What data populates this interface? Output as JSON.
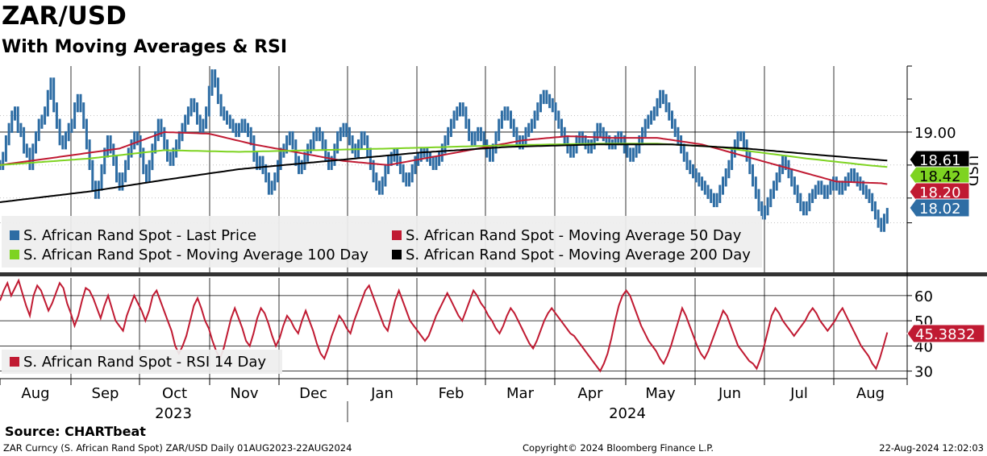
{
  "header": {
    "title": "ZAR/USD",
    "subtitle": "With Moving Averages & RSI"
  },
  "source": "Source: CHARTbeat",
  "footer": {
    "left": "ZAR Curncy (S. African Rand Spot) ZAR/USD  Daily 01AUG2023-22AUG2024",
    "middle": "Copyright© 2024 Bloomberg Finance L.P.",
    "right": "22-Aug-2024 12:02:03"
  },
  "colors": {
    "price": "#2e6da4",
    "ma50": "#c01a32",
    "ma100": "#7ed321",
    "ma200": "#000000",
    "rsi": "#c01a32"
  },
  "chart_data": [
    {
      "type": "line",
      "title": "ZAR/USD",
      "ylabel": "USD",
      "ylim": [
        17.3,
        19.8
      ],
      "yticks": [
        19.0
      ],
      "months": [
        "Aug",
        "Sep",
        "Oct",
        "Nov",
        "Dec",
        "Jan",
        "Feb",
        "Mar",
        "Apr",
        "May",
        "Jun",
        "Jul",
        "Aug"
      ],
      "years": [
        "2023",
        "2024"
      ],
      "series": [
        {
          "name": "S. African Rand Spot - Last Price",
          "key": "price",
          "last": "18.02",
          "values": [
            18.6,
            18.7,
            18.9,
            19.05,
            19.2,
            19.25,
            19.05,
            19.0,
            18.8,
            18.75,
            18.6,
            18.8,
            18.95,
            19.1,
            19.15,
            19.25,
            19.45,
            19.6,
            19.3,
            19.1,
            18.9,
            18.85,
            18.95,
            19.05,
            19.1,
            19.3,
            19.4,
            19.3,
            19.1,
            18.85,
            18.6,
            18.35,
            18.25,
            18.35,
            18.55,
            18.75,
            18.9,
            18.8,
            18.65,
            18.45,
            18.35,
            18.45,
            18.6,
            18.75,
            18.85,
            18.95,
            18.9,
            18.75,
            18.55,
            18.45,
            18.6,
            18.8,
            18.95,
            19.1,
            19.0,
            18.85,
            18.7,
            18.65,
            18.75,
            18.85,
            18.95,
            19.05,
            19.15,
            19.25,
            19.35,
            19.3,
            19.15,
            19.05,
            19.1,
            19.25,
            19.5,
            19.7,
            19.6,
            19.4,
            19.25,
            19.2,
            19.15,
            19.1,
            19.05,
            19.0,
            19.05,
            19.1,
            19.05,
            19.0,
            18.9,
            18.7,
            18.6,
            18.65,
            18.55,
            18.45,
            18.3,
            18.35,
            18.45,
            18.6,
            18.75,
            18.8,
            18.9,
            18.95,
            18.85,
            18.65,
            18.55,
            18.6,
            18.7,
            18.8,
            18.85,
            18.95,
            19.0,
            18.95,
            18.85,
            18.7,
            18.6,
            18.65,
            18.8,
            18.95,
            19.0,
            19.05,
            19.0,
            18.9,
            18.8,
            18.75,
            18.85,
            18.95,
            18.9,
            18.75,
            18.6,
            18.45,
            18.35,
            18.3,
            18.4,
            18.55,
            18.65,
            18.7,
            18.75,
            18.65,
            18.55,
            18.45,
            18.4,
            18.45,
            18.55,
            18.65,
            18.7,
            18.75,
            18.75,
            18.7,
            18.65,
            18.6,
            18.65,
            18.7,
            18.8,
            18.9,
            19.0,
            19.1,
            19.2,
            19.25,
            19.3,
            19.25,
            19.1,
            18.95,
            18.9,
            18.95,
            19.0,
            18.95,
            18.85,
            18.75,
            18.7,
            18.8,
            18.95,
            19.1,
            19.2,
            19.25,
            19.2,
            19.1,
            19.0,
            18.9,
            18.85,
            18.9,
            19.0,
            19.05,
            19.1,
            19.2,
            19.3,
            19.4,
            19.45,
            19.4,
            19.35,
            19.3,
            19.2,
            19.1,
            19.0,
            18.9,
            18.8,
            18.75,
            18.8,
            18.9,
            18.95,
            18.9,
            18.85,
            18.8,
            18.85,
            18.95,
            19.05,
            19.0,
            18.95,
            18.9,
            18.85,
            18.85,
            18.9,
            18.95,
            18.9,
            18.8,
            18.75,
            18.7,
            18.75,
            18.8,
            18.9,
            19.0,
            19.1,
            19.15,
            19.2,
            19.25,
            19.35,
            19.45,
            19.4,
            19.3,
            19.2,
            19.1,
            19.0,
            18.9,
            18.8,
            18.7,
            18.6,
            18.55,
            18.5,
            18.45,
            18.4,
            18.35,
            18.3,
            18.25,
            18.2,
            18.15,
            18.2,
            18.3,
            18.4,
            18.5,
            18.6,
            18.75,
            18.85,
            18.95,
            18.95,
            18.85,
            18.7,
            18.55,
            18.4,
            18.25,
            18.1,
            18.0,
            18.05,
            18.15,
            18.25,
            18.35,
            18.45,
            18.55,
            18.65,
            18.6,
            18.5,
            18.4,
            18.3,
            18.2,
            18.1,
            18.05,
            18.1,
            18.2,
            18.25,
            18.3,
            18.35,
            18.3,
            18.25,
            18.3,
            18.35,
            18.4,
            18.35,
            18.3,
            18.35,
            18.4,
            18.45,
            18.5,
            18.45,
            18.4,
            18.35,
            18.3,
            18.25,
            18.2,
            18.1,
            18.0,
            17.9,
            17.85,
            17.95,
            18.02
          ]
        },
        {
          "name": "S. African Rand Spot - Moving Average 50 Day",
          "key": "ma50",
          "last": "18.20",
          "anchors": [
            [
              0,
              18.6
            ],
            [
              20,
              18.7
            ],
            [
              40,
              18.8
            ],
            [
              55,
              19.0
            ],
            [
              70,
              18.98
            ],
            [
              85,
              18.85
            ],
            [
              100,
              18.75
            ],
            [
              115,
              18.65
            ],
            [
              130,
              18.6
            ],
            [
              145,
              18.7
            ],
            [
              160,
              18.8
            ],
            [
              175,
              18.9
            ],
            [
              190,
              18.95
            ],
            [
              205,
              18.93
            ],
            [
              220,
              18.93
            ],
            [
              235,
              18.85
            ],
            [
              250,
              18.7
            ],
            [
              265,
              18.55
            ],
            [
              280,
              18.4
            ],
            [
              295,
              18.38
            ],
            [
              310,
              18.3
            ],
            [
              318,
              18.2
            ]
          ]
        },
        {
          "name": "S. African Rand Spot - Moving Average 100 Day",
          "key": "ma100",
          "last": "18.42",
          "anchors": [
            [
              0,
              18.6
            ],
            [
              30,
              18.68
            ],
            [
              55,
              18.78
            ],
            [
              80,
              18.76
            ],
            [
              105,
              18.78
            ],
            [
              130,
              18.8
            ],
            [
              150,
              18.82
            ],
            [
              170,
              18.84
            ],
            [
              200,
              18.86
            ],
            [
              220,
              18.86
            ],
            [
              240,
              18.82
            ],
            [
              255,
              18.75
            ],
            [
              270,
              18.68
            ],
            [
              290,
              18.6
            ],
            [
              305,
              18.55
            ],
            [
              318,
              18.42
            ]
          ]
        },
        {
          "name": "S. African Rand Spot - Moving Average 200 Day",
          "key": "ma200",
          "last": "18.61",
          "anchors": [
            [
              0,
              18.15
            ],
            [
              30,
              18.28
            ],
            [
              55,
              18.42
            ],
            [
              80,
              18.55
            ],
            [
              110,
              18.65
            ],
            [
              140,
              18.75
            ],
            [
              170,
              18.82
            ],
            [
              200,
              18.85
            ],
            [
              225,
              18.85
            ],
            [
              250,
              18.8
            ],
            [
              275,
              18.72
            ],
            [
              295,
              18.66
            ],
            [
              318,
              18.61
            ]
          ]
        }
      ]
    },
    {
      "type": "line",
      "title": "RSI",
      "ylim": [
        27,
        67
      ],
      "yticks": [
        30,
        40,
        50,
        60
      ],
      "series": [
        {
          "name": "S. African Rand Spot - RSI 14 Day",
          "key": "rsi",
          "last": "45.3832",
          "values": [
            58,
            62,
            65,
            60,
            63,
            66,
            61,
            56,
            52,
            60,
            64,
            62,
            58,
            54,
            57,
            61,
            65,
            63,
            57,
            53,
            48,
            52,
            58,
            63,
            62,
            59,
            55,
            51,
            56,
            60,
            55,
            50,
            48,
            46,
            52,
            56,
            60,
            57,
            54,
            50,
            54,
            60,
            62,
            58,
            54,
            50,
            46,
            40,
            37,
            40,
            44,
            50,
            56,
            59,
            55,
            50,
            47,
            42,
            38,
            35,
            39,
            45,
            51,
            55,
            51,
            47,
            42,
            40,
            45,
            51,
            55,
            53,
            49,
            44,
            40,
            43,
            48,
            52,
            50,
            47,
            45,
            50,
            54,
            50,
            46,
            41,
            37,
            35,
            39,
            44,
            48,
            52,
            50,
            47,
            45,
            50,
            54,
            58,
            62,
            64,
            60,
            56,
            52,
            48,
            46,
            52,
            58,
            62,
            58,
            54,
            50,
            48,
            46,
            44,
            42,
            44,
            48,
            52,
            55,
            58,
            61,
            58,
            55,
            52,
            50,
            54,
            58,
            62,
            60,
            57,
            55,
            52,
            50,
            47,
            45,
            48,
            52,
            55,
            53,
            50,
            47,
            44,
            41,
            39,
            42,
            46,
            50,
            53,
            55,
            53,
            51,
            49,
            47,
            45,
            44,
            42,
            40,
            38,
            36,
            34,
            32,
            30,
            33,
            37,
            43,
            50,
            56,
            60,
            62,
            60,
            56,
            52,
            48,
            45,
            42,
            40,
            38,
            35,
            33,
            36,
            40,
            45,
            50,
            55,
            52,
            48,
            44,
            40,
            37,
            35,
            38,
            42,
            46,
            50,
            54,
            52,
            48,
            44,
            40,
            38,
            36,
            34,
            33,
            31,
            35,
            40,
            46,
            52,
            55,
            53,
            50,
            48,
            46,
            44,
            46,
            48,
            50,
            53,
            55,
            53,
            50,
            48,
            46,
            48,
            50,
            53,
            55,
            52,
            49,
            46,
            43,
            40,
            38,
            36,
            33,
            31,
            35,
            40,
            45.3832
          ]
        }
      ]
    }
  ],
  "legend_main": [
    "S. African Rand Spot - Last Price",
    "S. African Rand Spot - Moving Average 50 Day",
    "S. African Rand Spot - Moving Average 100 Day",
    "S. African Rand Spot - Moving Average 200 Day"
  ],
  "legend_rsi": "S. African Rand Spot - RSI 14 Day"
}
